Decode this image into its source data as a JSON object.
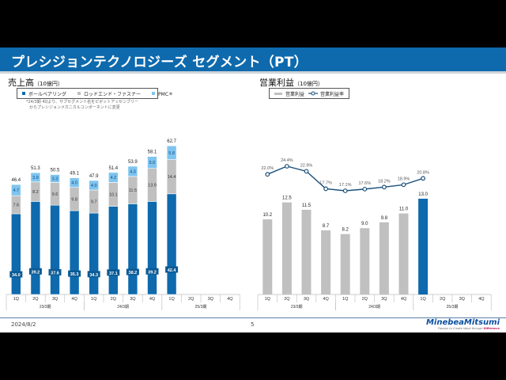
{
  "title": "プレシジョンテクノロジーズ セグメント（PT）",
  "colors": {
    "ball_bearing": "#0e6aad",
    "rod_end": "#c0c0c0",
    "pmc": "#7fc4ef",
    "op_income_past": "#c0c0c0",
    "op_income_current": "#0e6aad",
    "margin_line": "#1a4f7a",
    "header": "#0e6aad"
  },
  "sales": {
    "title": "売上高",
    "unit": "（10億円）",
    "legend": [
      "ボールベアリング",
      "ロッドエンド・ファスナー",
      "PMC＊"
    ],
    "note_lines": [
      "*24/3期 4Qより、サブセグメント名をピボットアッセンブリー",
      "からプレシジョンメカニカルコンポーネントに変更"
    ]
  },
  "op_income": {
    "title": "営業利益",
    "unit": "（10億円）",
    "legend": [
      "営業利益",
      "営業利益率"
    ]
  },
  "footer": {
    "date": "2024/8/2",
    "page": "5",
    "logo": "MinebeaMitsumi",
    "tagline_pre": "Passion to Create Value through ",
    "tagline_em": "Difference"
  },
  "chart_data": [
    {
      "type": "bar",
      "stacked": true,
      "title": "売上高（10億円）",
      "categories": [
        "1Q",
        "2Q",
        "3Q",
        "4Q",
        "1Q",
        "2Q",
        "3Q",
        "4Q",
        "1Q",
        "2Q",
        "3Q",
        "4Q"
      ],
      "groups": [
        {
          "label": "23/3期",
          "span": 4
        },
        {
          "label": "24/3期",
          "span": 4
        },
        {
          "label": "25/3期",
          "span": 4
        }
      ],
      "series": [
        {
          "name": "ボールベアリング",
          "values": [
            34.0,
            39.2,
            37.6,
            35.3,
            34.3,
            37.1,
            38.2,
            39.2,
            42.4,
            null,
            null,
            null
          ]
        },
        {
          "name": "ロッドエンド・ファスナー",
          "values": [
            7.6,
            8.2,
            9.6,
            9.8,
            9.7,
            10.1,
            11.5,
            13.9,
            14.4,
            null,
            null,
            null
          ]
        },
        {
          "name": "PMC＊",
          "values": [
            4.7,
            3.9,
            3.3,
            4.0,
            4.0,
            4.2,
            4.3,
            5.0,
            5.8,
            null,
            null,
            null
          ]
        }
      ],
      "totals": [
        46.4,
        51.3,
        50.5,
        49.1,
        47.9,
        51.4,
        53.9,
        58.1,
        62.7,
        null,
        null,
        null
      ],
      "ylim": [
        0,
        70
      ],
      "legend_position": "top-left"
    },
    {
      "type": "bar+line",
      "title": "営業利益（10億円）",
      "categories": [
        "1Q",
        "2Q",
        "3Q",
        "4Q",
        "1Q",
        "2Q",
        "3Q",
        "4Q",
        "1Q",
        "2Q",
        "3Q",
        "4Q"
      ],
      "groups": [
        {
          "label": "23/3期",
          "span": 4
        },
        {
          "label": "24/3期",
          "span": 4
        },
        {
          "label": "25/3期",
          "span": 4
        }
      ],
      "series": [
        {
          "name": "営業利益",
          "type": "bar",
          "values": [
            10.2,
            12.5,
            11.5,
            8.7,
            8.2,
            9.0,
            9.8,
            11.0,
            13.0,
            null,
            null,
            null
          ],
          "highlight_index": 8
        },
        {
          "name": "営業利益率",
          "type": "line",
          "unit": "%",
          "values": [
            22.0,
            24.4,
            22.9,
            17.7,
            17.1,
            17.6,
            18.2,
            18.9,
            20.8,
            null,
            null,
            null
          ]
        }
      ],
      "bar_ylim": [
        0,
        15
      ],
      "line_ylim": [
        10,
        30
      ],
      "legend_position": "top-left"
    }
  ]
}
